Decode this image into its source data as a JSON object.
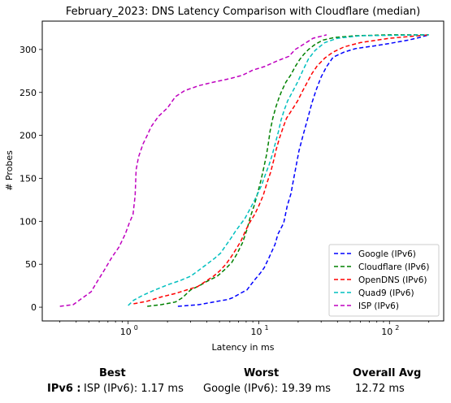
{
  "chart_data": {
    "type": "line",
    "title": "February_2023: DNS Latency Comparison with Cloudflare (median)",
    "xlabel": "Latency in ms",
    "ylabel": "# Probes",
    "xscale": "log",
    "xlim": [
      0.22,
      260
    ],
    "ylim": [
      -16,
      333
    ],
    "x_ticks": [
      {
        "value": 1,
        "base": "10",
        "exp": "0"
      },
      {
        "value": 10,
        "base": "10",
        "exp": "1"
      },
      {
        "value": 100,
        "base": "10",
        "exp": "2"
      }
    ],
    "y_ticks": [
      0,
      50,
      100,
      150,
      200,
      250,
      300
    ],
    "grid": false,
    "legend_position": "lower right",
    "series": [
      {
        "name": "Google (IPv6)",
        "color": "#0000ff",
        "points": [
          [
            2.4,
            1
          ],
          [
            3.5,
            3
          ],
          [
            4.5,
            6
          ],
          [
            5.8,
            9
          ],
          [
            6.3,
            11
          ],
          [
            7.4,
            17
          ],
          [
            8.1,
            20
          ],
          [
            9.2,
            31
          ],
          [
            10.3,
            40
          ],
          [
            11.0,
            46
          ],
          [
            12.0,
            58
          ],
          [
            13.3,
            73
          ],
          [
            14.0,
            85
          ],
          [
            15.5,
            98
          ],
          [
            16.5,
            118
          ],
          [
            17.6,
            132
          ],
          [
            18.5,
            150
          ],
          [
            19.5,
            168
          ],
          [
            20.3,
            182
          ],
          [
            21.8,
            200
          ],
          [
            23.5,
            218
          ],
          [
            25.5,
            238
          ],
          [
            27.5,
            253
          ],
          [
            30.0,
            268
          ],
          [
            33.0,
            280
          ],
          [
            37.0,
            291
          ],
          [
            45.0,
            297
          ],
          [
            55.0,
            301
          ],
          [
            75.0,
            304
          ],
          [
            100.0,
            307
          ],
          [
            140.0,
            311
          ],
          [
            170.0,
            314
          ],
          [
            200.0,
            317
          ]
        ]
      },
      {
        "name": "Cloudflare (IPv6)",
        "color": "#008000",
        "points": [
          [
            1.4,
            1
          ],
          [
            1.8,
            3
          ],
          [
            2.3,
            6
          ],
          [
            2.6,
            11
          ],
          [
            3.0,
            20
          ],
          [
            3.5,
            25
          ],
          [
            4.0,
            30
          ],
          [
            4.8,
            36
          ],
          [
            5.5,
            44
          ],
          [
            6.2,
            52
          ],
          [
            6.8,
            62
          ],
          [
            7.5,
            75
          ],
          [
            8.1,
            90
          ],
          [
            8.6,
            105
          ],
          [
            9.2,
            118
          ],
          [
            9.8,
            133
          ],
          [
            10.4,
            148
          ],
          [
            10.9,
            162
          ],
          [
            11.4,
            176
          ],
          [
            11.8,
            190
          ],
          [
            12.2,
            205
          ],
          [
            12.8,
            220
          ],
          [
            13.5,
            233
          ],
          [
            14.2,
            243
          ],
          [
            15.0,
            252
          ],
          [
            16.1,
            262
          ],
          [
            17.5,
            270
          ],
          [
            19.0,
            280
          ],
          [
            20.5,
            288
          ],
          [
            22.0,
            294
          ],
          [
            24.0,
            300
          ],
          [
            27.0,
            306
          ],
          [
            31.0,
            311
          ],
          [
            38.0,
            314
          ],
          [
            55.0,
            316
          ],
          [
            100.0,
            317
          ],
          [
            200.0,
            317
          ]
        ]
      },
      {
        "name": "OpenDNS (IPv6)",
        "color": "#ff0000",
        "points": [
          [
            1.1,
            4
          ],
          [
            1.4,
            7
          ],
          [
            1.8,
            12
          ],
          [
            2.3,
            16
          ],
          [
            2.8,
            20
          ],
          [
            3.4,
            24
          ],
          [
            3.9,
            30
          ],
          [
            4.5,
            36
          ],
          [
            5.0,
            42
          ],
          [
            5.6,
            50
          ],
          [
            6.1,
            58
          ],
          [
            6.6,
            66
          ],
          [
            7.3,
            77
          ],
          [
            7.8,
            87
          ],
          [
            8.4,
            97
          ],
          [
            9.3,
            108
          ],
          [
            10.0,
            118
          ],
          [
            10.8,
            130
          ],
          [
            11.5,
            144
          ],
          [
            12.3,
            157
          ],
          [
            13.0,
            171
          ],
          [
            13.6,
            184
          ],
          [
            14.4,
            197
          ],
          [
            15.4,
            210
          ],
          [
            16.3,
            220
          ],
          [
            18.0,
            230
          ],
          [
            19.8,
            240
          ],
          [
            21.5,
            251
          ],
          [
            23.5,
            262
          ],
          [
            25.5,
            272
          ],
          [
            28.0,
            281
          ],
          [
            32.0,
            290
          ],
          [
            37.0,
            297
          ],
          [
            45.0,
            303
          ],
          [
            60.0,
            308
          ],
          [
            100.0,
            313
          ],
          [
            200.0,
            317
          ]
        ]
      },
      {
        "name": "Quad9 (IPv6)",
        "color": "#00bfbf",
        "points": [
          [
            1.0,
            2
          ],
          [
            1.1,
            8
          ],
          [
            1.3,
            14
          ],
          [
            1.6,
            20
          ],
          [
            2.0,
            26
          ],
          [
            2.5,
            31
          ],
          [
            3.0,
            36
          ],
          [
            3.4,
            42
          ],
          [
            4.0,
            50
          ],
          [
            4.6,
            57
          ],
          [
            5.1,
            63
          ],
          [
            5.6,
            72
          ],
          [
            6.1,
            80
          ],
          [
            6.6,
            88
          ],
          [
            7.2,
            96
          ],
          [
            7.8,
            103
          ],
          [
            8.4,
            112
          ],
          [
            9.1,
            122
          ],
          [
            9.8,
            132
          ],
          [
            10.5,
            142
          ],
          [
            11.2,
            154
          ],
          [
            12.0,
            166
          ],
          [
            12.7,
            178
          ],
          [
            13.4,
            191
          ],
          [
            14.1,
            204
          ],
          [
            14.8,
            218
          ],
          [
            15.7,
            230
          ],
          [
            16.6,
            240
          ],
          [
            18.0,
            250
          ],
          [
            19.8,
            262
          ],
          [
            21.8,
            276
          ],
          [
            24.0,
            289
          ],
          [
            27.0,
            299
          ],
          [
            32.0,
            308
          ],
          [
            40.0,
            313
          ],
          [
            60.0,
            316
          ],
          [
            200.0,
            317
          ]
        ]
      },
      {
        "name": "ISP (IPv6)",
        "color": "#bf00bf",
        "points": [
          [
            0.3,
            1
          ],
          [
            0.38,
            3
          ],
          [
            0.44,
            10
          ],
          [
            0.52,
            18
          ],
          [
            0.58,
            30
          ],
          [
            0.65,
            42
          ],
          [
            0.75,
            58
          ],
          [
            0.85,
            70
          ],
          [
            0.95,
            85
          ],
          [
            1.02,
            98
          ],
          [
            1.09,
            108
          ],
          [
            1.13,
            130
          ],
          [
            1.15,
            160
          ],
          [
            1.2,
            175
          ],
          [
            1.3,
            190
          ],
          [
            1.4,
            200
          ],
          [
            1.5,
            210
          ],
          [
            1.7,
            222
          ],
          [
            2.0,
            232
          ],
          [
            2.3,
            245
          ],
          [
            2.7,
            252
          ],
          [
            3.5,
            258
          ],
          [
            4.5,
            262
          ],
          [
            6.0,
            266
          ],
          [
            7.5,
            270
          ],
          [
            9.0,
            276
          ],
          [
            11.0,
            280
          ],
          [
            14.0,
            287
          ],
          [
            17.0,
            292
          ],
          [
            19.0,
            300
          ],
          [
            22.0,
            306
          ],
          [
            26.0,
            313
          ],
          [
            33.0,
            317
          ]
        ]
      }
    ]
  },
  "summary": {
    "headers": {
      "best": "Best",
      "worst": "Worst",
      "overall": "Overall Avg"
    },
    "row_label": "IPv6 :",
    "best": "ISP (IPv6): 1.17 ms",
    "worst": "Google (IPv6): 19.39 ms",
    "overall": "12.72 ms"
  }
}
